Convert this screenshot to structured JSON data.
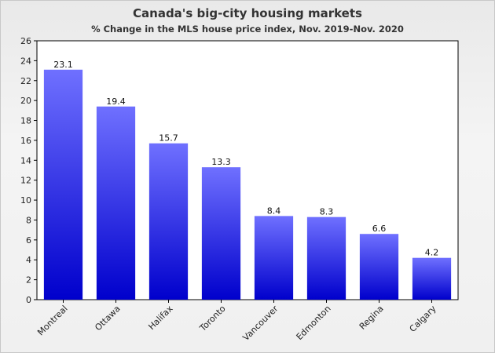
{
  "chart_data": {
    "type": "bar",
    "title": "Canada's big-city housing markets",
    "subtitle": "% Change in the MLS house price index, Nov. 2019-Nov. 2020",
    "categories": [
      "Montreal",
      "Ottawa",
      "Halifax",
      "Toronto",
      "Vancouver",
      "Edmonton",
      "Regina",
      "Calgary"
    ],
    "values": [
      23.1,
      19.4,
      15.7,
      13.3,
      8.4,
      8.3,
      6.6,
      4.2
    ],
    "value_labels": [
      "23.1",
      "19.4",
      "15.7",
      "13.3",
      "8.4",
      "8.3",
      "6.6",
      "4.2"
    ],
    "ylim": [
      0,
      26
    ],
    "yticks": [
      0,
      2,
      4,
      6,
      8,
      10,
      12,
      14,
      16,
      18,
      20,
      22,
      24,
      26
    ],
    "xlabel": "",
    "ylabel": "",
    "grid": false,
    "legend": "none",
    "colors": {
      "bar_top": "#6f70ff",
      "bar_bottom": "#0000cc",
      "plot_bg": "#ffffff",
      "axis": "#000000"
    }
  }
}
